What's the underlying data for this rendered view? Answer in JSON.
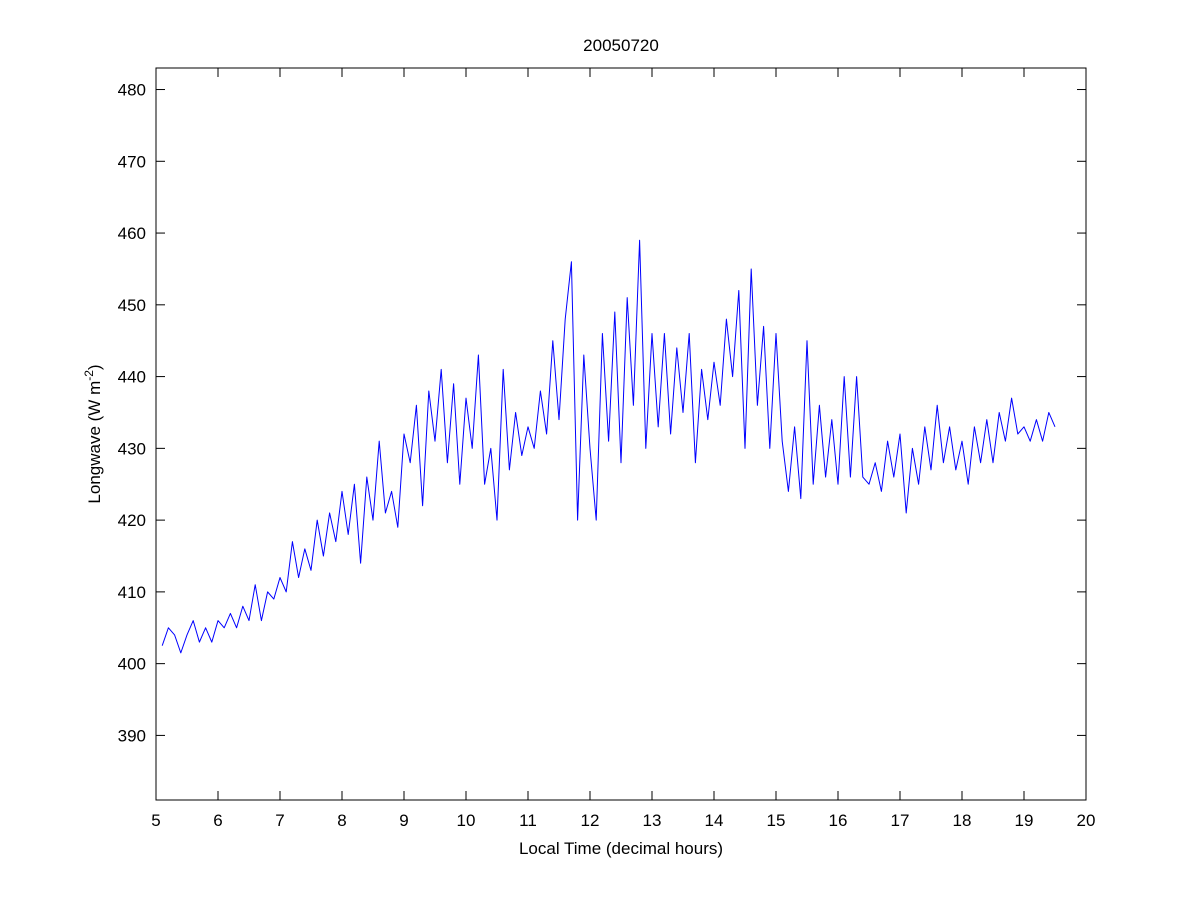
{
  "chart_data": {
    "type": "line",
    "title": "20050720",
    "xlabel": "Local Time (decimal hours)",
    "ylabel": {
      "text": "Longwave (W m",
      "superscript": "-2",
      "suffix": ")"
    },
    "x": [
      5.1,
      5.2,
      5.3,
      5.4,
      5.5,
      5.6,
      5.7,
      5.8,
      5.9,
      6.0,
      6.1,
      6.2,
      6.3,
      6.4,
      6.5,
      6.6,
      6.7,
      6.8,
      6.9,
      7.0,
      7.1,
      7.2,
      7.3,
      7.4,
      7.5,
      7.6,
      7.7,
      7.8,
      7.9,
      8.0,
      8.1,
      8.2,
      8.3,
      8.4,
      8.5,
      8.6,
      8.7,
      8.8,
      8.9,
      9.0,
      9.1,
      9.2,
      9.3,
      9.4,
      9.5,
      9.6,
      9.7,
      9.8,
      9.9,
      10.0,
      10.1,
      10.2,
      10.3,
      10.4,
      10.5,
      10.6,
      10.7,
      10.8,
      10.9,
      11.0,
      11.1,
      11.2,
      11.3,
      11.4,
      11.5,
      11.6,
      11.7,
      11.8,
      11.9,
      12.0,
      12.1,
      12.2,
      12.3,
      12.4,
      12.5,
      12.6,
      12.7,
      12.8,
      12.9,
      13.0,
      13.1,
      13.2,
      13.3,
      13.4,
      13.5,
      13.6,
      13.7,
      13.8,
      13.9,
      14.0,
      14.1,
      14.2,
      14.3,
      14.4,
      14.5,
      14.6,
      14.7,
      14.8,
      14.9,
      15.0,
      15.1,
      15.2,
      15.3,
      15.4,
      15.5,
      15.6,
      15.7,
      15.8,
      15.9,
      16.0,
      16.1,
      16.2,
      16.3,
      16.4,
      16.5,
      16.6,
      16.7,
      16.8,
      16.9,
      17.0,
      17.1,
      17.2,
      17.3,
      17.4,
      17.5,
      17.6,
      17.7,
      17.8,
      17.9,
      18.0,
      18.1,
      18.2,
      18.3,
      18.4,
      18.5,
      18.6,
      18.7,
      18.8,
      18.9,
      19.0,
      19.1,
      19.2,
      19.3,
      19.4,
      19.5
    ],
    "series": [
      {
        "name": "Longwave",
        "color": "#0000ff",
        "values": [
          402.5,
          405,
          404,
          401.5,
          404,
          406,
          403,
          405,
          403,
          406,
          405,
          407,
          405,
          408,
          406,
          411,
          406,
          410,
          409,
          412,
          410,
          417,
          412,
          416,
          413,
          420,
          415,
          421,
          417,
          424,
          418,
          425,
          414,
          426,
          420,
          431,
          421,
          424,
          419,
          432,
          428,
          436,
          422,
          438,
          431,
          441,
          428,
          439,
          425,
          437,
          430,
          443,
          425,
          430,
          420,
          441,
          427,
          435,
          429,
          433,
          430,
          438,
          432,
          445,
          434,
          448,
          456,
          420,
          443,
          430,
          420,
          446,
          431,
          449,
          428,
          451,
          436,
          459,
          430,
          446,
          433,
          446,
          432,
          444,
          435,
          446,
          428,
          441,
          434,
          442,
          436,
          448,
          440,
          452,
          430,
          455,
          436,
          447,
          430,
          446,
          431,
          424,
          433,
          423,
          445,
          425,
          436,
          426,
          434,
          425,
          440,
          426,
          440,
          426,
          425,
          428,
          424,
          431,
          426,
          432,
          421,
          430,
          425,
          433,
          427,
          436,
          428,
          433,
          427,
          431,
          425,
          433,
          428,
          434,
          428,
          435,
          431,
          437,
          432,
          433,
          431,
          434,
          431,
          435,
          433
        ]
      }
    ],
    "xlim": [
      5,
      20
    ],
    "xticks": [
      5,
      6,
      7,
      8,
      9,
      10,
      11,
      12,
      13,
      14,
      15,
      16,
      17,
      18,
      19,
      20
    ],
    "ylim": [
      381,
      483
    ],
    "yticks": [
      390,
      400,
      410,
      420,
      430,
      440,
      450,
      460,
      470,
      480
    ],
    "grid": false
  }
}
